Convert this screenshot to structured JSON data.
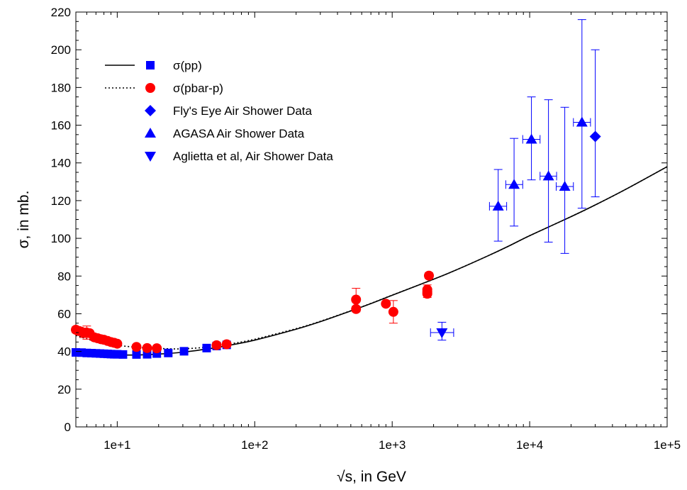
{
  "chart_data": {
    "type": "scatter",
    "xlabel": "√s, in GeV",
    "ylabel": "σ, in mb.",
    "xscale": "log",
    "xlim": [
      5,
      100000
    ],
    "ylim": [
      0,
      220
    ],
    "x_ticks": [
      10,
      100,
      1000,
      10000,
      100000
    ],
    "x_tick_labels": [
      "1e+1",
      "1e+2",
      "1e+3",
      "1e+4",
      "1e+5"
    ],
    "y_ticks": [
      0,
      20,
      40,
      60,
      80,
      100,
      120,
      140,
      160,
      180,
      200,
      220
    ],
    "y_tick_labels": [
      "0",
      "20",
      "40",
      "60",
      "80",
      "100",
      "120",
      "140",
      "160",
      "180",
      "200",
      "220"
    ],
    "grid": false,
    "legend_position": "top-left",
    "curves": [
      {
        "name": "σ(pp) fit",
        "style": "solid",
        "x": [
          5,
          7,
          10,
          15,
          20,
          30,
          50,
          70,
          100,
          200,
          300,
          500,
          700,
          1000,
          2000,
          3000,
          5000,
          7000,
          10000,
          20000,
          30000,
          50000,
          100000
        ],
        "y": [
          38.8,
          38.3,
          38.1,
          38.2,
          38.6,
          39.6,
          41.8,
          43.7,
          46,
          51.8,
          55.8,
          61.5,
          65.4,
          69.8,
          78.3,
          83.6,
          90.8,
          95.8,
          101.4,
          111.5,
          117.7,
          126,
          138
        ]
      },
      {
        "name": "σ(pbar-p) fit",
        "style": "dotted",
        "x": [
          5,
          7,
          10,
          15,
          20,
          30,
          50,
          70,
          100,
          200,
          300,
          500,
          700,
          1000,
          2000,
          3000,
          5000,
          7000,
          10000,
          20000,
          30000,
          50000,
          100000
        ],
        "y": [
          48.5,
          45.3,
          43.3,
          42,
          41.6,
          41.4,
          42.6,
          44.3,
          46.5,
          52.1,
          56,
          61.6,
          65.5,
          69.9,
          78.3,
          83.6,
          90.8,
          95.8,
          101.4,
          111.5,
          117.7,
          126,
          138
        ]
      }
    ],
    "series": [
      {
        "name": "σ(pp)",
        "marker": "square",
        "color": "#0000ff",
        "x": [
          5,
          5.5,
          6,
          6.5,
          7,
          7.5,
          8,
          8.5,
          9,
          9.5,
          10,
          11,
          13.8,
          16.5,
          19.4,
          23.5,
          30.6,
          44.7,
          52.8,
          62.5
        ],
        "y": [
          39.5,
          39.4,
          39.2,
          39.1,
          39,
          38.9,
          38.8,
          38.7,
          38.6,
          38.5,
          38.5,
          38.4,
          38.4,
          38.5,
          38.9,
          39.2,
          40.1,
          41.8,
          42.9,
          43.5
        ]
      },
      {
        "name": "σ(pbar-p)",
        "marker": "circle",
        "color": "#ff0000",
        "x": [
          5,
          5.3,
          5.7,
          6,
          6.3,
          6.8,
          7.2,
          7.6,
          8,
          8.5,
          9,
          9.5,
          10,
          13.8,
          16.5,
          19.4,
          52.8,
          62.5,
          546,
          546,
          900,
          1020,
          1800,
          1800,
          1800,
          1850
        ],
        "y": [
          51.5,
          50.8,
          49.9,
          50,
          49.7,
          47.5,
          47,
          46.5,
          46.2,
          45.6,
          45,
          44.6,
          44.1,
          42.4,
          41.8,
          41.7,
          43.3,
          43.8,
          67.5,
          62.5,
          65.3,
          61,
          72.8,
          71.6,
          70.6,
          80.2
        ],
        "y_err": [
          1.5,
          2,
          2.5,
          3.5,
          1,
          1,
          1,
          1,
          1,
          1,
          1,
          1,
          1,
          0.6,
          0.6,
          0.6,
          0.6,
          0.6,
          6,
          1.5,
          1,
          6,
          2.5,
          2,
          2,
          1.5
        ]
      },
      {
        "name": "Fly's Eye Air Shower Data",
        "marker": "diamond",
        "color": "#0000ff",
        "x": [
          30000
        ],
        "y": [
          154
        ],
        "y_low": [
          122
        ],
        "y_high": [
          200
        ]
      },
      {
        "name": "AGASA Air Shower Data",
        "marker": "triangle-up",
        "color": "#0000ff",
        "x": [
          5900,
          7700,
          10300,
          13700,
          18000,
          24000
        ],
        "x_low": [
          5100,
          6700,
          8900,
          11900,
          15600,
          20800
        ],
        "x_high": [
          6800,
          8900,
          11900,
          15700,
          20800,
          27700
        ],
        "y": [
          117,
          128.5,
          152.5,
          133,
          127.5,
          161.5
        ],
        "y_low": [
          98.5,
          106.5,
          131,
          98,
          92,
          116
        ],
        "y_high": [
          136.5,
          153,
          175,
          173.5,
          169.5,
          216
        ]
      },
      {
        "name": "Aglietta et al, Air Shower Data",
        "marker": "triangle-down",
        "color": "#0000ff",
        "x": [
          2300
        ],
        "x_low": [
          1900
        ],
        "x_high": [
          2800
        ],
        "y": [
          50
        ],
        "y_low": [
          46
        ],
        "y_high": [
          55.5
        ]
      }
    ],
    "legend": {
      "entries": [
        {
          "label": "σ(pp)",
          "line": "solid",
          "marker": "square",
          "color": "#0000ff"
        },
        {
          "label": "σ(pbar-p)",
          "line": "dotted",
          "marker": "circle",
          "color": "#ff0000"
        },
        {
          "label": "Fly's Eye Air Shower Data",
          "line": "none",
          "marker": "diamond",
          "color": "#0000ff"
        },
        {
          "label": "AGASA Air Shower Data",
          "line": "none",
          "marker": "triangle-up",
          "color": "#0000ff"
        },
        {
          "label": "Aglietta et al, Air Shower Data",
          "line": "none",
          "marker": "triangle-down",
          "color": "#0000ff"
        }
      ]
    }
  }
}
